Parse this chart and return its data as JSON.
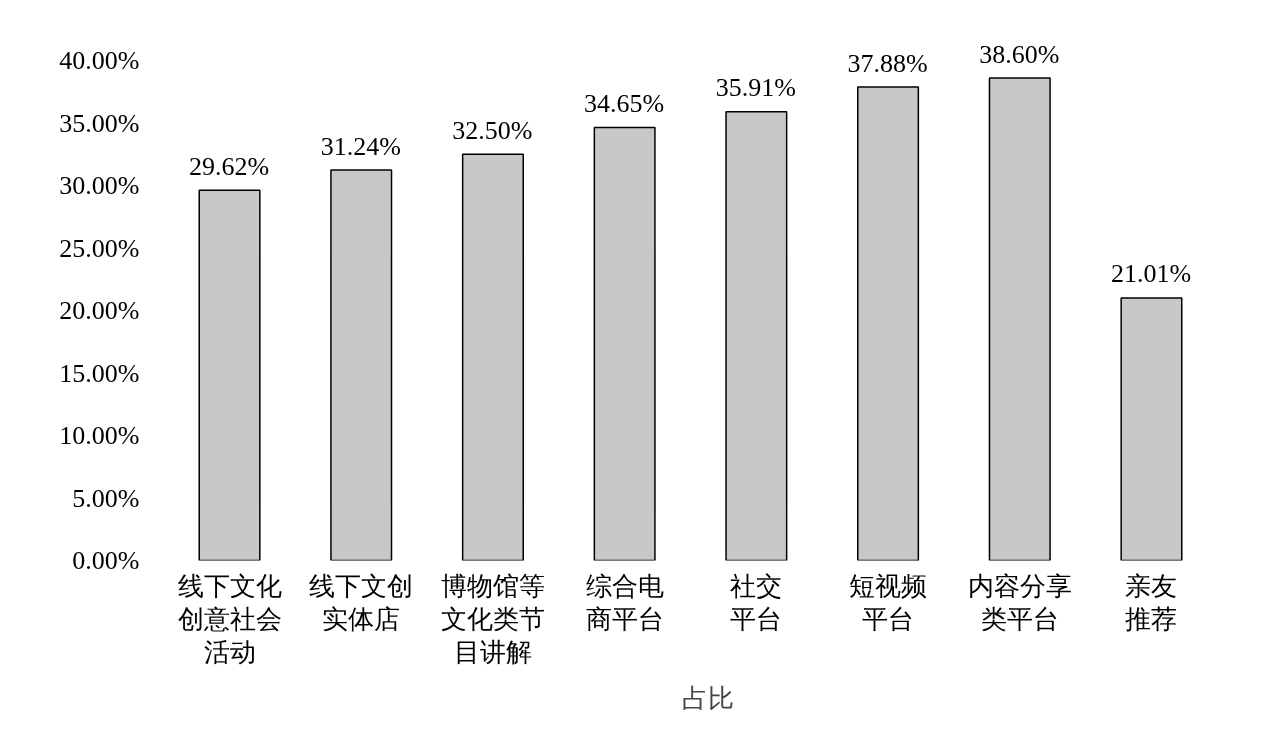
{
  "chart_data": {
    "type": "bar",
    "categories": [
      "线下文化创意社会活动",
      "线下文创实体店",
      "博物馆等文化类节目讲解",
      "综合电商平台",
      "社交平台",
      "短视频平台",
      "内容分享类平台",
      "亲友推荐"
    ],
    "series": [
      {
        "name": "占比",
        "color": "#c8c8c8",
        "values": [
          29.62,
          31.24,
          32.5,
          34.65,
          35.91,
          37.88,
          38.6,
          21.01
        ],
        "value_labels": [
          "29.62%",
          "31.24%",
          "32.50%",
          "34.65%",
          "35.91%",
          "37.88%",
          "38.60%",
          "21.01%"
        ]
      }
    ],
    "ylim": [
      0,
      40
    ],
    "yticks": [
      {
        "value": 0,
        "label": "0.00%"
      },
      {
        "value": 5,
        "label": "5.00%"
      },
      {
        "value": 10,
        "label": "10.00%"
      },
      {
        "value": 15,
        "label": "15.00%"
      },
      {
        "value": 20,
        "label": "20.00%"
      },
      {
        "value": 25,
        "label": "25.00%"
      },
      {
        "value": 30,
        "label": "30.00%"
      },
      {
        "value": 35,
        "label": "35.00%"
      },
      {
        "value": 40,
        "label": "40.00%"
      }
    ],
    "grid": false,
    "legend": "bottom"
  }
}
